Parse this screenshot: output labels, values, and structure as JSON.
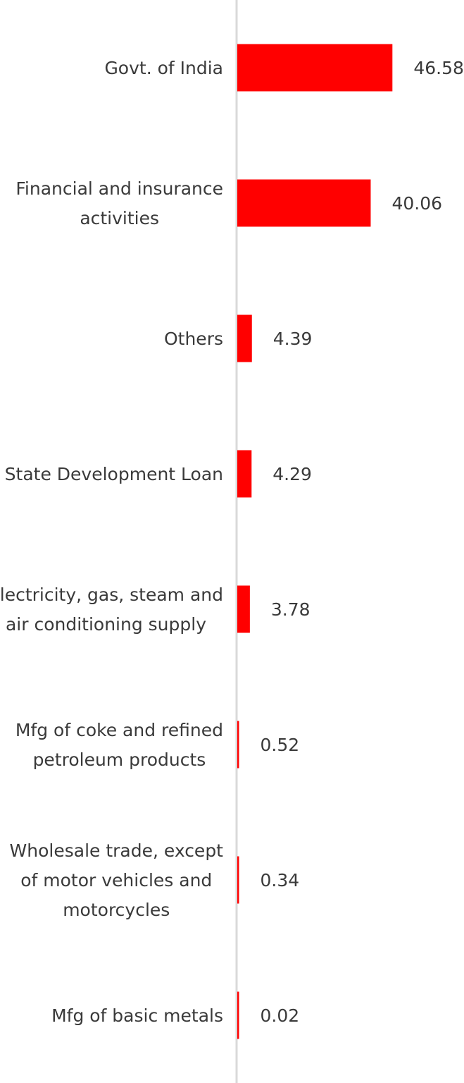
{
  "chart_data": {
    "type": "bar",
    "orientation": "horizontal",
    "categories": [
      "Govt. of India",
      "Financial and insurance activities",
      "Others",
      "State Development Loan",
      "Electricity, gas, steam and air conditioning supply",
      "Mfg of coke and refined petroleum products",
      "Wholesale trade, except of motor vehicles and motorcycles",
      "Mfg of basic metals"
    ],
    "category_lines": [
      [
        "Govt. of India"
      ],
      [
        "Financial and insurance",
        "activities"
      ],
      [
        "Others"
      ],
      [
        "State Development Loan"
      ],
      [
        "Electricity, gas, steam and",
        "air conditioning supply"
      ],
      [
        "Mfg of coke and refined",
        "petroleum products"
      ],
      [
        "Wholesale trade, except",
        "of motor vehicles and",
        "motorcycles"
      ],
      [
        "Mfg of basic metals"
      ]
    ],
    "values": [
      46.58,
      40.06,
      4.39,
      4.29,
      3.78,
      0.52,
      0.34,
      0.02
    ],
    "value_labels": [
      "46.58",
      "40.06",
      "4.39",
      "4.29",
      "3.78",
      "0.52",
      "0.34",
      "0.02"
    ],
    "bar_color": "#ff0000",
    "axis_color": "#d9d9d9",
    "grid": false,
    "legend": "none",
    "title": "",
    "xlabel": "",
    "ylabel": ""
  }
}
